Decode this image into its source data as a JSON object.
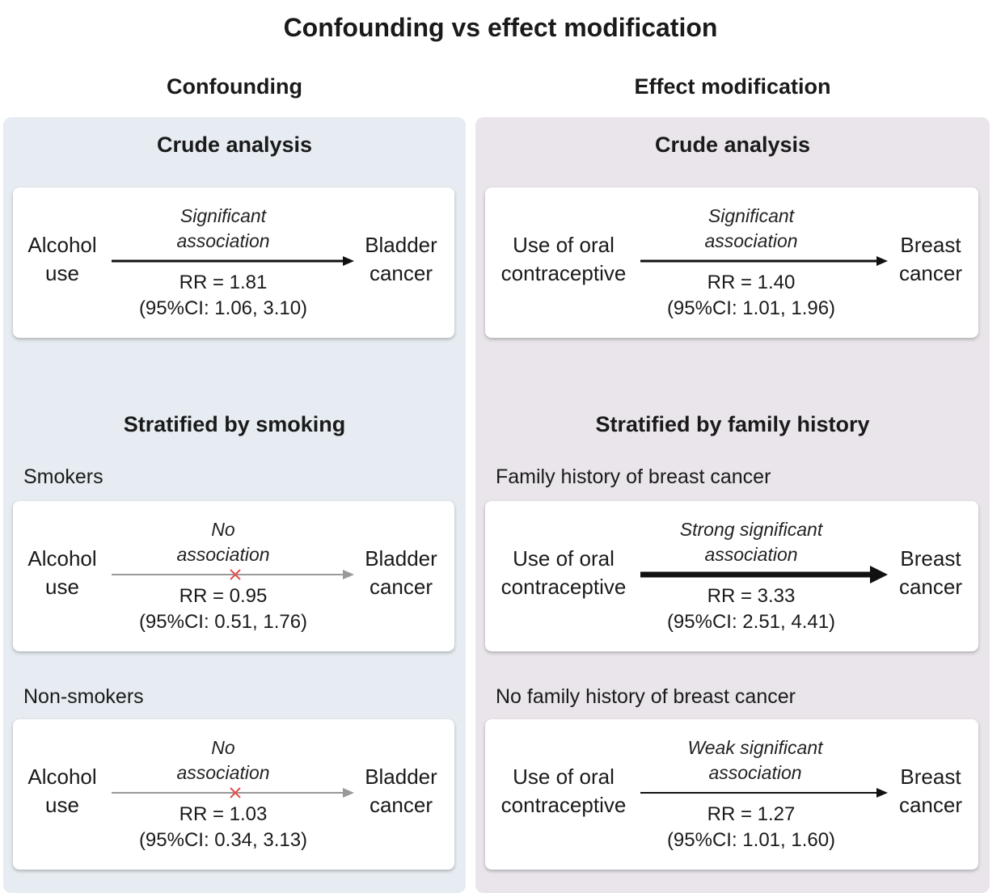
{
  "title": "Confounding vs effect modification",
  "columns": [
    {
      "heading": "Confounding",
      "crude_heading": "Crude analysis",
      "stratified_heading": "Stratified by smoking",
      "cards": [
        {
          "stratum": "",
          "source": "Alcohol\nuse",
          "target": "Bladder\ncancer",
          "label": "Significant\nassociation",
          "rr": "RR = 1.81",
          "ci": "(95%CI: 1.06, 3.10)",
          "arrow": "normal"
        },
        {
          "stratum": "Smokers",
          "source": "Alcohol\nuse",
          "target": "Bladder\ncancer",
          "label": "No\nassociation",
          "rr": "RR = 0.95",
          "ci": "(95%CI: 0.51, 1.76)",
          "arrow": "none"
        },
        {
          "stratum": "Non-smokers",
          "source": "Alcohol\nuse",
          "target": "Bladder\ncancer",
          "label": "No\nassociation",
          "rr": "RR = 1.03",
          "ci": "(95%CI: 0.34, 3.13)",
          "arrow": "none"
        }
      ]
    },
    {
      "heading": "Effect modification",
      "crude_heading": "Crude analysis",
      "stratified_heading": "Stratified by family history",
      "cards": [
        {
          "stratum": "",
          "source": "Use of oral\ncontraceptive",
          "target": "Breast\ncancer",
          "label": "Significant\nassociation",
          "rr": "RR = 1.40",
          "ci": "(95%CI: 1.01, 1.96)",
          "arrow": "normal"
        },
        {
          "stratum": "Family history of breast cancer",
          "source": "Use of oral\ncontraceptive",
          "target": "Breast\ncancer",
          "label": "Strong significant\nassociation",
          "rr": "RR = 3.33",
          "ci": "(95%CI: 2.51, 4.41)",
          "arrow": "strong"
        },
        {
          "stratum": "No family history of breast cancer",
          "source": "Use of oral\ncontraceptive",
          "target": "Breast\ncancer",
          "label": "Weak significant\nassociation",
          "rr": "RR = 1.27",
          "ci": "(95%CI: 1.01, 1.60)",
          "arrow": "weak"
        }
      ]
    }
  ],
  "colors": {
    "confounding_bg": "#e6ecf1",
    "effect_bg": "#e9e5ea",
    "no_assoc_x": "#e05050",
    "no_assoc_line": "#999999"
  }
}
